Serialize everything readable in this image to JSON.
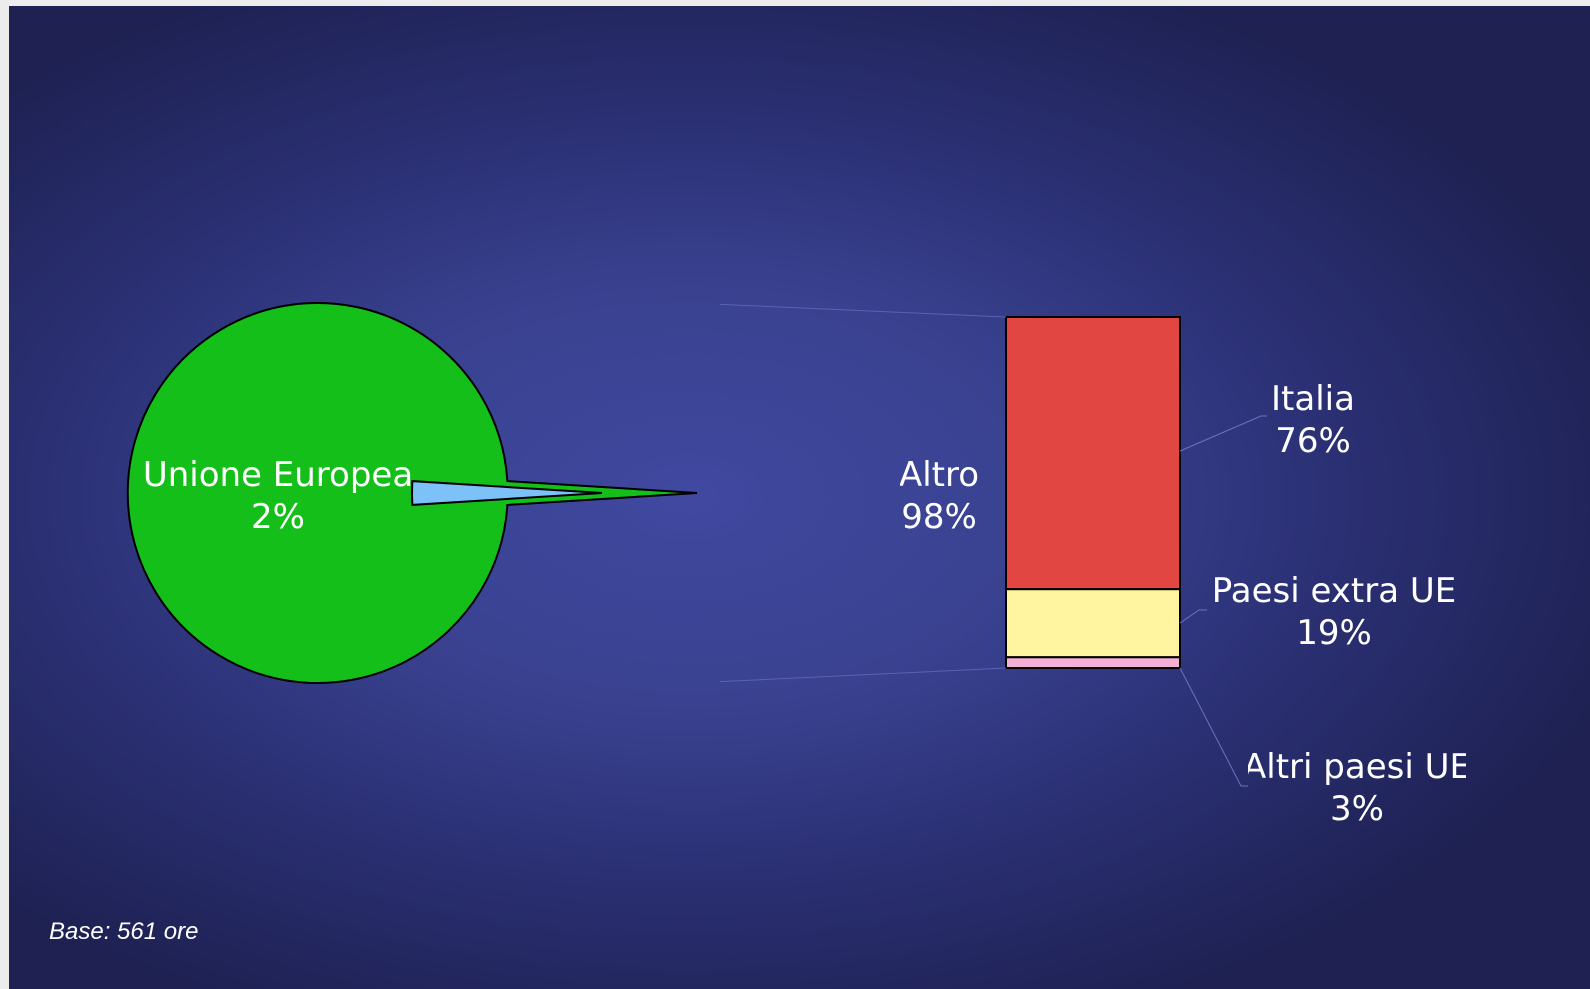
{
  "chart_data": {
    "type": "bar-of-pie",
    "pie": [
      {
        "name": "Unione Europea",
        "label": "2%",
        "value": 2,
        "color": "#7cc2f8",
        "exploded": true
      },
      {
        "name": "Altro",
        "label": "98%",
        "value": 98,
        "color": "#15bf1a"
      }
    ],
    "bar": {
      "breakdown_of": "Altro",
      "segments": [
        {
          "name": "Italia",
          "label": "76%",
          "value": 76,
          "color": "#e24642"
        },
        {
          "name": "Paesi extra UE",
          "label": "19%",
          "value": 19,
          "color": "#fff4a0"
        },
        {
          "name": "Altri paesi UE",
          "label": "3%",
          "value": 3,
          "color": "#f5b0d8"
        }
      ]
    }
  },
  "footnote": "Base: 561 ore"
}
